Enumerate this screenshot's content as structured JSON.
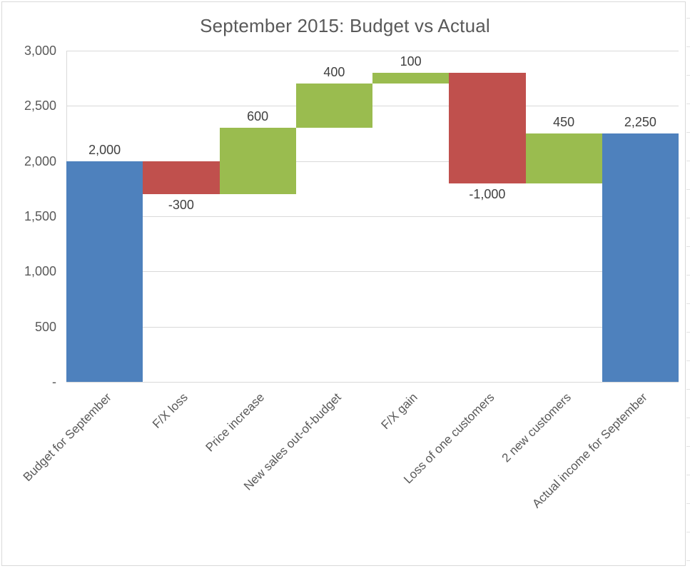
{
  "chart_data": {
    "type": "bar",
    "subtype": "waterfall",
    "title": "September 2015: Budget vs Actual",
    "legend": "none",
    "grid": true,
    "categories": [
      "Budget for September",
      "F/X loss",
      "Price increase",
      "New sales out-of-budget",
      "F/X gain",
      "Loss of one customers",
      "2 new customers",
      "Actual income for September"
    ],
    "bars": [
      {
        "category": "Budget for September",
        "value": 2000,
        "label": "2,000",
        "start": 0,
        "end": 2000,
        "role": "total",
        "label_position": "above"
      },
      {
        "category": "F/X loss",
        "value": -300,
        "label": "-300",
        "start": 2000,
        "end": 1700,
        "role": "decrease",
        "label_position": "below"
      },
      {
        "category": "Price increase",
        "value": 600,
        "label": "600",
        "start": 1700,
        "end": 2300,
        "role": "increase",
        "label_position": "above"
      },
      {
        "category": "New sales out-of-budget",
        "value": 400,
        "label": "400",
        "start": 2300,
        "end": 2700,
        "role": "increase",
        "label_position": "above"
      },
      {
        "category": "F/X gain",
        "value": 100,
        "label": "100",
        "start": 2700,
        "end": 2800,
        "role": "increase",
        "label_position": "above"
      },
      {
        "category": "Loss of one customers",
        "value": -1000,
        "label": "-1,000",
        "start": 2800,
        "end": 1800,
        "role": "decrease",
        "label_position": "below"
      },
      {
        "category": "2 new customers",
        "value": 450,
        "label": "450",
        "start": 1800,
        "end": 2250,
        "role": "increase",
        "label_position": "above"
      },
      {
        "category": "Actual income for September",
        "value": 2250,
        "label": "2,250",
        "start": 0,
        "end": 2250,
        "role": "total",
        "label_position": "above"
      }
    ],
    "y_axis": {
      "min": 0,
      "max": 3000,
      "tick_interval": 500,
      "ticks": [
        {
          "value": 3000,
          "label": "3,000"
        },
        {
          "value": 2500,
          "label": "2,500"
        },
        {
          "value": 2000,
          "label": "2,000"
        },
        {
          "value": 1500,
          "label": "1,500"
        },
        {
          "value": 1000,
          "label": "1,000"
        },
        {
          "value": 500,
          "label": "500"
        },
        {
          "value": 0,
          "label": "-"
        }
      ]
    },
    "x_axis": {
      "label_rotation_degrees": 45
    },
    "colors": {
      "total": "#4E81BD",
      "increase": "#9ABC4F",
      "decrease": "#C0504D",
      "gridline": "#D9D9D9",
      "axis_line": "#D9D9D9",
      "title_text": "#595959",
      "axis_text": "#595959",
      "data_label_text": "#404040",
      "frame_border": "#D9D9D9"
    }
  }
}
